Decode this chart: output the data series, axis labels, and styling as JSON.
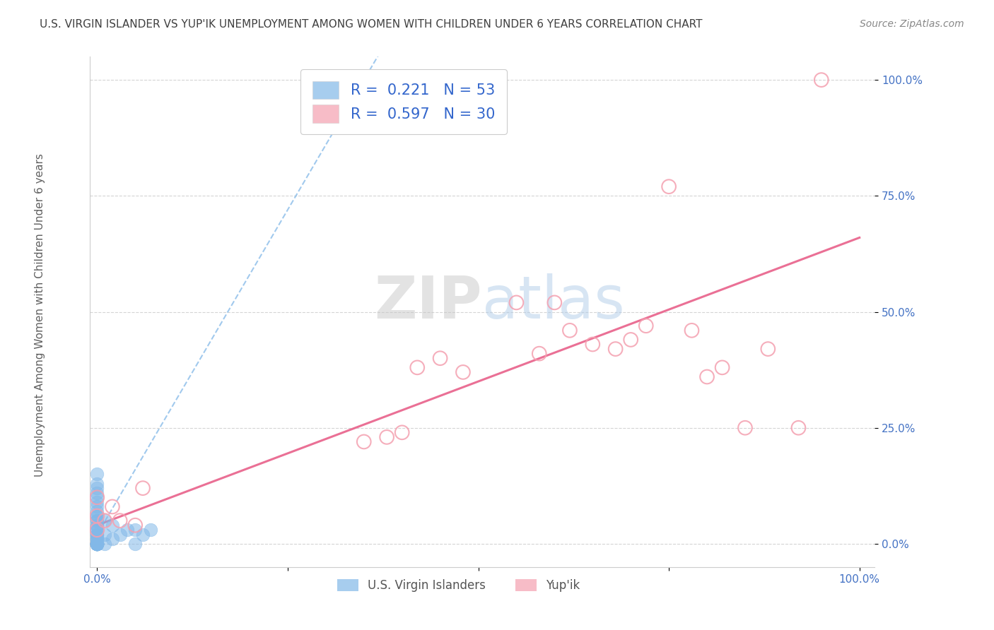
{
  "title": "U.S. VIRGIN ISLANDER VS YUP'IK UNEMPLOYMENT AMONG WOMEN WITH CHILDREN UNDER 6 YEARS CORRELATION CHART",
  "source": "Source: ZipAtlas.com",
  "ylabel": "Unemployment Among Women with Children Under 6 years",
  "ytick_labels": [
    "0.0%",
    "25.0%",
    "50.0%",
    "75.0%",
    "100.0%"
  ],
  "ytick_values": [
    0.0,
    0.25,
    0.5,
    0.75,
    1.0
  ],
  "xlim": [
    -0.01,
    1.02
  ],
  "ylim": [
    -0.05,
    1.05
  ],
  "blue_color": "#82b8e8",
  "pink_color": "#f4a0b0",
  "blue_trend_color": "#82b8e8",
  "pink_trend_color": "#e8608a",
  "blue_scatter_x": [
    0.0,
    0.0,
    0.0,
    0.0,
    0.0,
    0.0,
    0.0,
    0.0,
    0.0,
    0.0,
    0.0,
    0.0,
    0.0,
    0.0,
    0.0,
    0.0,
    0.0,
    0.0,
    0.0,
    0.0,
    0.0,
    0.0,
    0.0,
    0.0,
    0.0,
    0.0,
    0.0,
    0.0,
    0.0,
    0.0,
    0.0,
    0.0,
    0.0,
    0.0,
    0.0,
    0.0,
    0.0,
    0.0,
    0.0,
    0.0,
    0.0,
    0.01,
    0.01,
    0.01,
    0.02,
    0.02,
    0.03,
    0.04,
    0.05,
    0.05,
    0.06,
    0.07,
    0.35
  ],
  "blue_scatter_y": [
    0.0,
    0.0,
    0.0,
    0.0,
    0.0,
    0.0,
    0.0,
    0.0,
    0.0,
    0.0,
    0.0,
    0.0,
    0.0,
    0.0,
    0.0,
    0.0,
    0.0,
    0.0,
    0.0,
    0.01,
    0.01,
    0.01,
    0.02,
    0.02,
    0.02,
    0.03,
    0.03,
    0.04,
    0.04,
    0.05,
    0.05,
    0.06,
    0.06,
    0.07,
    0.08,
    0.09,
    0.1,
    0.11,
    0.12,
    0.13,
    0.15,
    0.0,
    0.02,
    0.05,
    0.01,
    0.04,
    0.02,
    0.03,
    0.0,
    0.03,
    0.02,
    0.03,
    0.95
  ],
  "pink_scatter_x": [
    0.0,
    0.0,
    0.0,
    0.01,
    0.02,
    0.03,
    0.05,
    0.06,
    0.35,
    0.38,
    0.4,
    0.42,
    0.45,
    0.48,
    0.55,
    0.58,
    0.6,
    0.62,
    0.65,
    0.68,
    0.7,
    0.72,
    0.75,
    0.78,
    0.8,
    0.82,
    0.85,
    0.88,
    0.92,
    0.95
  ],
  "pink_scatter_y": [
    0.03,
    0.06,
    0.1,
    0.05,
    0.08,
    0.05,
    0.04,
    0.12,
    0.22,
    0.23,
    0.24,
    0.38,
    0.4,
    0.37,
    0.52,
    0.41,
    0.52,
    0.46,
    0.43,
    0.42,
    0.44,
    0.47,
    0.77,
    0.46,
    0.36,
    0.38,
    0.25,
    0.42,
    0.25,
    1.0
  ],
  "blue_trend_slope": 2.8,
  "blue_trend_intercept": 0.02,
  "pink_trend_slope": 0.62,
  "pink_trend_intercept": 0.04,
  "watermark_zip": "ZIP",
  "watermark_atlas": "atlas",
  "background_color": "#ffffff",
  "grid_color": "#d0d0d0",
  "title_color": "#404040",
  "label_color": "#4472c4"
}
